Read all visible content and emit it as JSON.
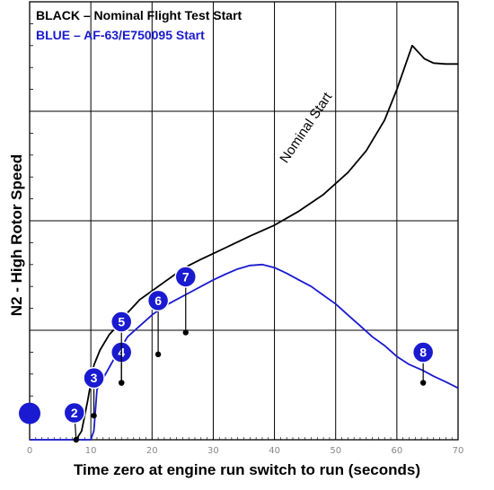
{
  "chart_data": {
    "type": "line",
    "title": "",
    "xlabel": "Time zero at engine run switch to run (seconds)",
    "ylabel": "N2  - High Rotor Speed",
    "xlim": [
      0,
      70
    ],
    "x_ticks": [
      "0",
      "10",
      "20",
      "30",
      "40",
      "50",
      "60",
      "70"
    ],
    "y_gridlines": 4,
    "grid": true,
    "legend": [
      {
        "text": "BLACK – Nominal Flight Test Start",
        "color": "#000000"
      },
      {
        "text": "BLUE – AF-63/E750095 Start",
        "color": "#1a1ad0"
      }
    ],
    "legend_position": "top-left",
    "series": [
      {
        "color": "#000000",
        "x": [
          7.6,
          8.5,
          9.5,
          10.5,
          11.5,
          13,
          14,
          15,
          16,
          17,
          18,
          20,
          22,
          24,
          26,
          28,
          30,
          33,
          36,
          40,
          44,
          48,
          52,
          55,
          58,
          60,
          61.5,
          62.5,
          63.5,
          64.5,
          66,
          68,
          70
        ],
        "y": [
          0,
          0.02,
          0.09,
          0.17,
          0.205,
          0.24,
          0.255,
          0.272,
          0.29,
          0.305,
          0.32,
          0.34,
          0.36,
          0.38,
          0.398,
          0.412,
          0.425,
          0.445,
          0.465,
          0.49,
          0.522,
          0.56,
          0.61,
          0.66,
          0.73,
          0.8,
          0.86,
          0.9,
          0.885,
          0.87,
          0.86,
          0.858,
          0.858
        ]
      },
      {
        "color": "#1a1ad0",
        "x": [
          0,
          7.6,
          8.2,
          9,
          10,
          10.5,
          11,
          12,
          13,
          14,
          15,
          16,
          18,
          20,
          21,
          22,
          24,
          26,
          28,
          30,
          32,
          34,
          36,
          38,
          40,
          42,
          44,
          46,
          48,
          50,
          52,
          54,
          56,
          58,
          60,
          62,
          64.3,
          66,
          68,
          70
        ],
        "y": [
          0,
          0,
          0,
          0,
          0,
          0.02,
          0.115,
          0.14,
          0.165,
          0.19,
          0.212,
          0.235,
          0.26,
          0.285,
          0.295,
          0.305,
          0.32,
          0.335,
          0.35,
          0.365,
          0.378,
          0.39,
          0.398,
          0.4,
          0.393,
          0.38,
          0.365,
          0.35,
          0.33,
          0.31,
          0.285,
          0.26,
          0.235,
          0.215,
          0.19,
          0.172,
          0.158,
          0.145,
          0.132,
          0.118
        ]
      }
    ],
    "annotations": [
      {
        "text": "Nominal Start",
        "x": 42,
        "y": 0.63
      }
    ],
    "markers": [
      {
        "label": "",
        "x": 0,
        "y": 0.05,
        "style": "dot"
      },
      {
        "label": "2",
        "x": 7.6,
        "y": 0
      },
      {
        "label": "3",
        "x": 10.5,
        "y": 0.055
      },
      {
        "label": "4",
        "x": 15,
        "y": 0.13
      },
      {
        "label": "5",
        "x": 15,
        "y": 0.13
      },
      {
        "label": "6",
        "x": 21,
        "y": 0.195
      },
      {
        "label": "7",
        "x": 25.5,
        "y": 0.245
      },
      {
        "label": "8",
        "x": 64.3,
        "y": 0.13
      }
    ]
  }
}
